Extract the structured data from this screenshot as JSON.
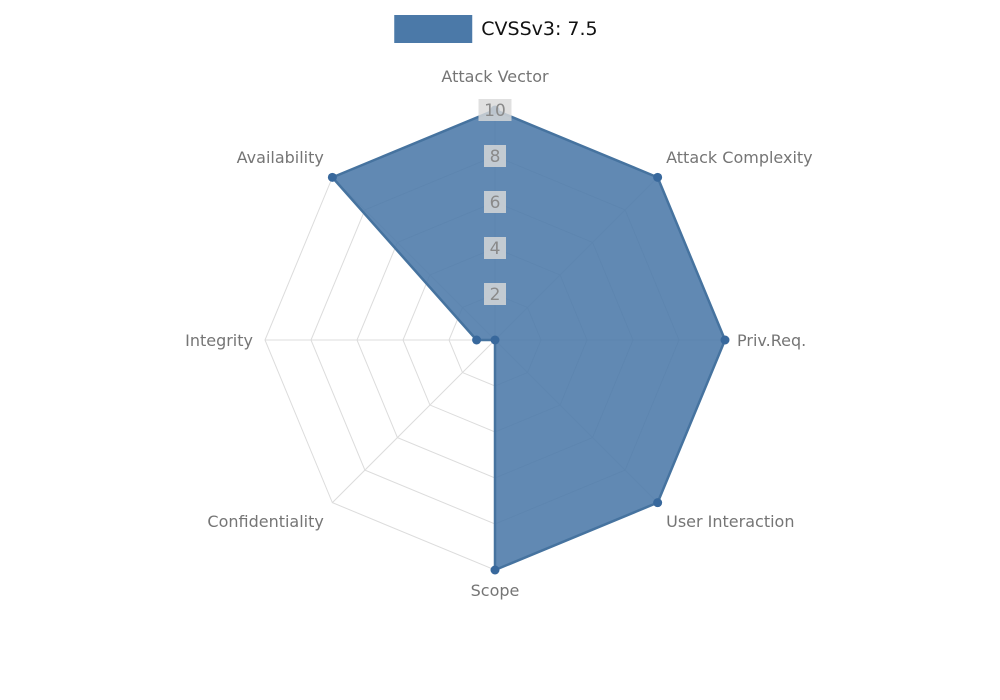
{
  "legend": {
    "label": "CVSSv3: 7.5"
  },
  "chart_data": {
    "type": "radar",
    "title": "CVSSv3: 7.5",
    "categories": [
      "Attack Vector",
      "Attack Complexity",
      "Priv.Req.",
      "User Interaction",
      "Scope",
      "Confidentiality",
      "Integrity",
      "Availability"
    ],
    "series": [
      {
        "name": "CVSSv3: 7.5",
        "values": [
          10,
          10,
          10,
          10,
          10,
          0,
          0.8,
          10
        ]
      }
    ],
    "ticks": [
      2,
      4,
      6,
      8,
      10
    ],
    "rmin": 0,
    "rmax": 10,
    "grid": true,
    "grid_shape": "polygon",
    "legend_position": "top",
    "colors": {
      "fill": "#4b79a8",
      "fill_opacity": 0.88,
      "stroke": "#46739f",
      "point": "#38689c",
      "grid_line": "#dcdcdc",
      "axis_label": "#757575",
      "tick_label": "#8a8a8a",
      "tick_backdrop": "#d9d9d9",
      "legend_text": "#111111"
    }
  }
}
